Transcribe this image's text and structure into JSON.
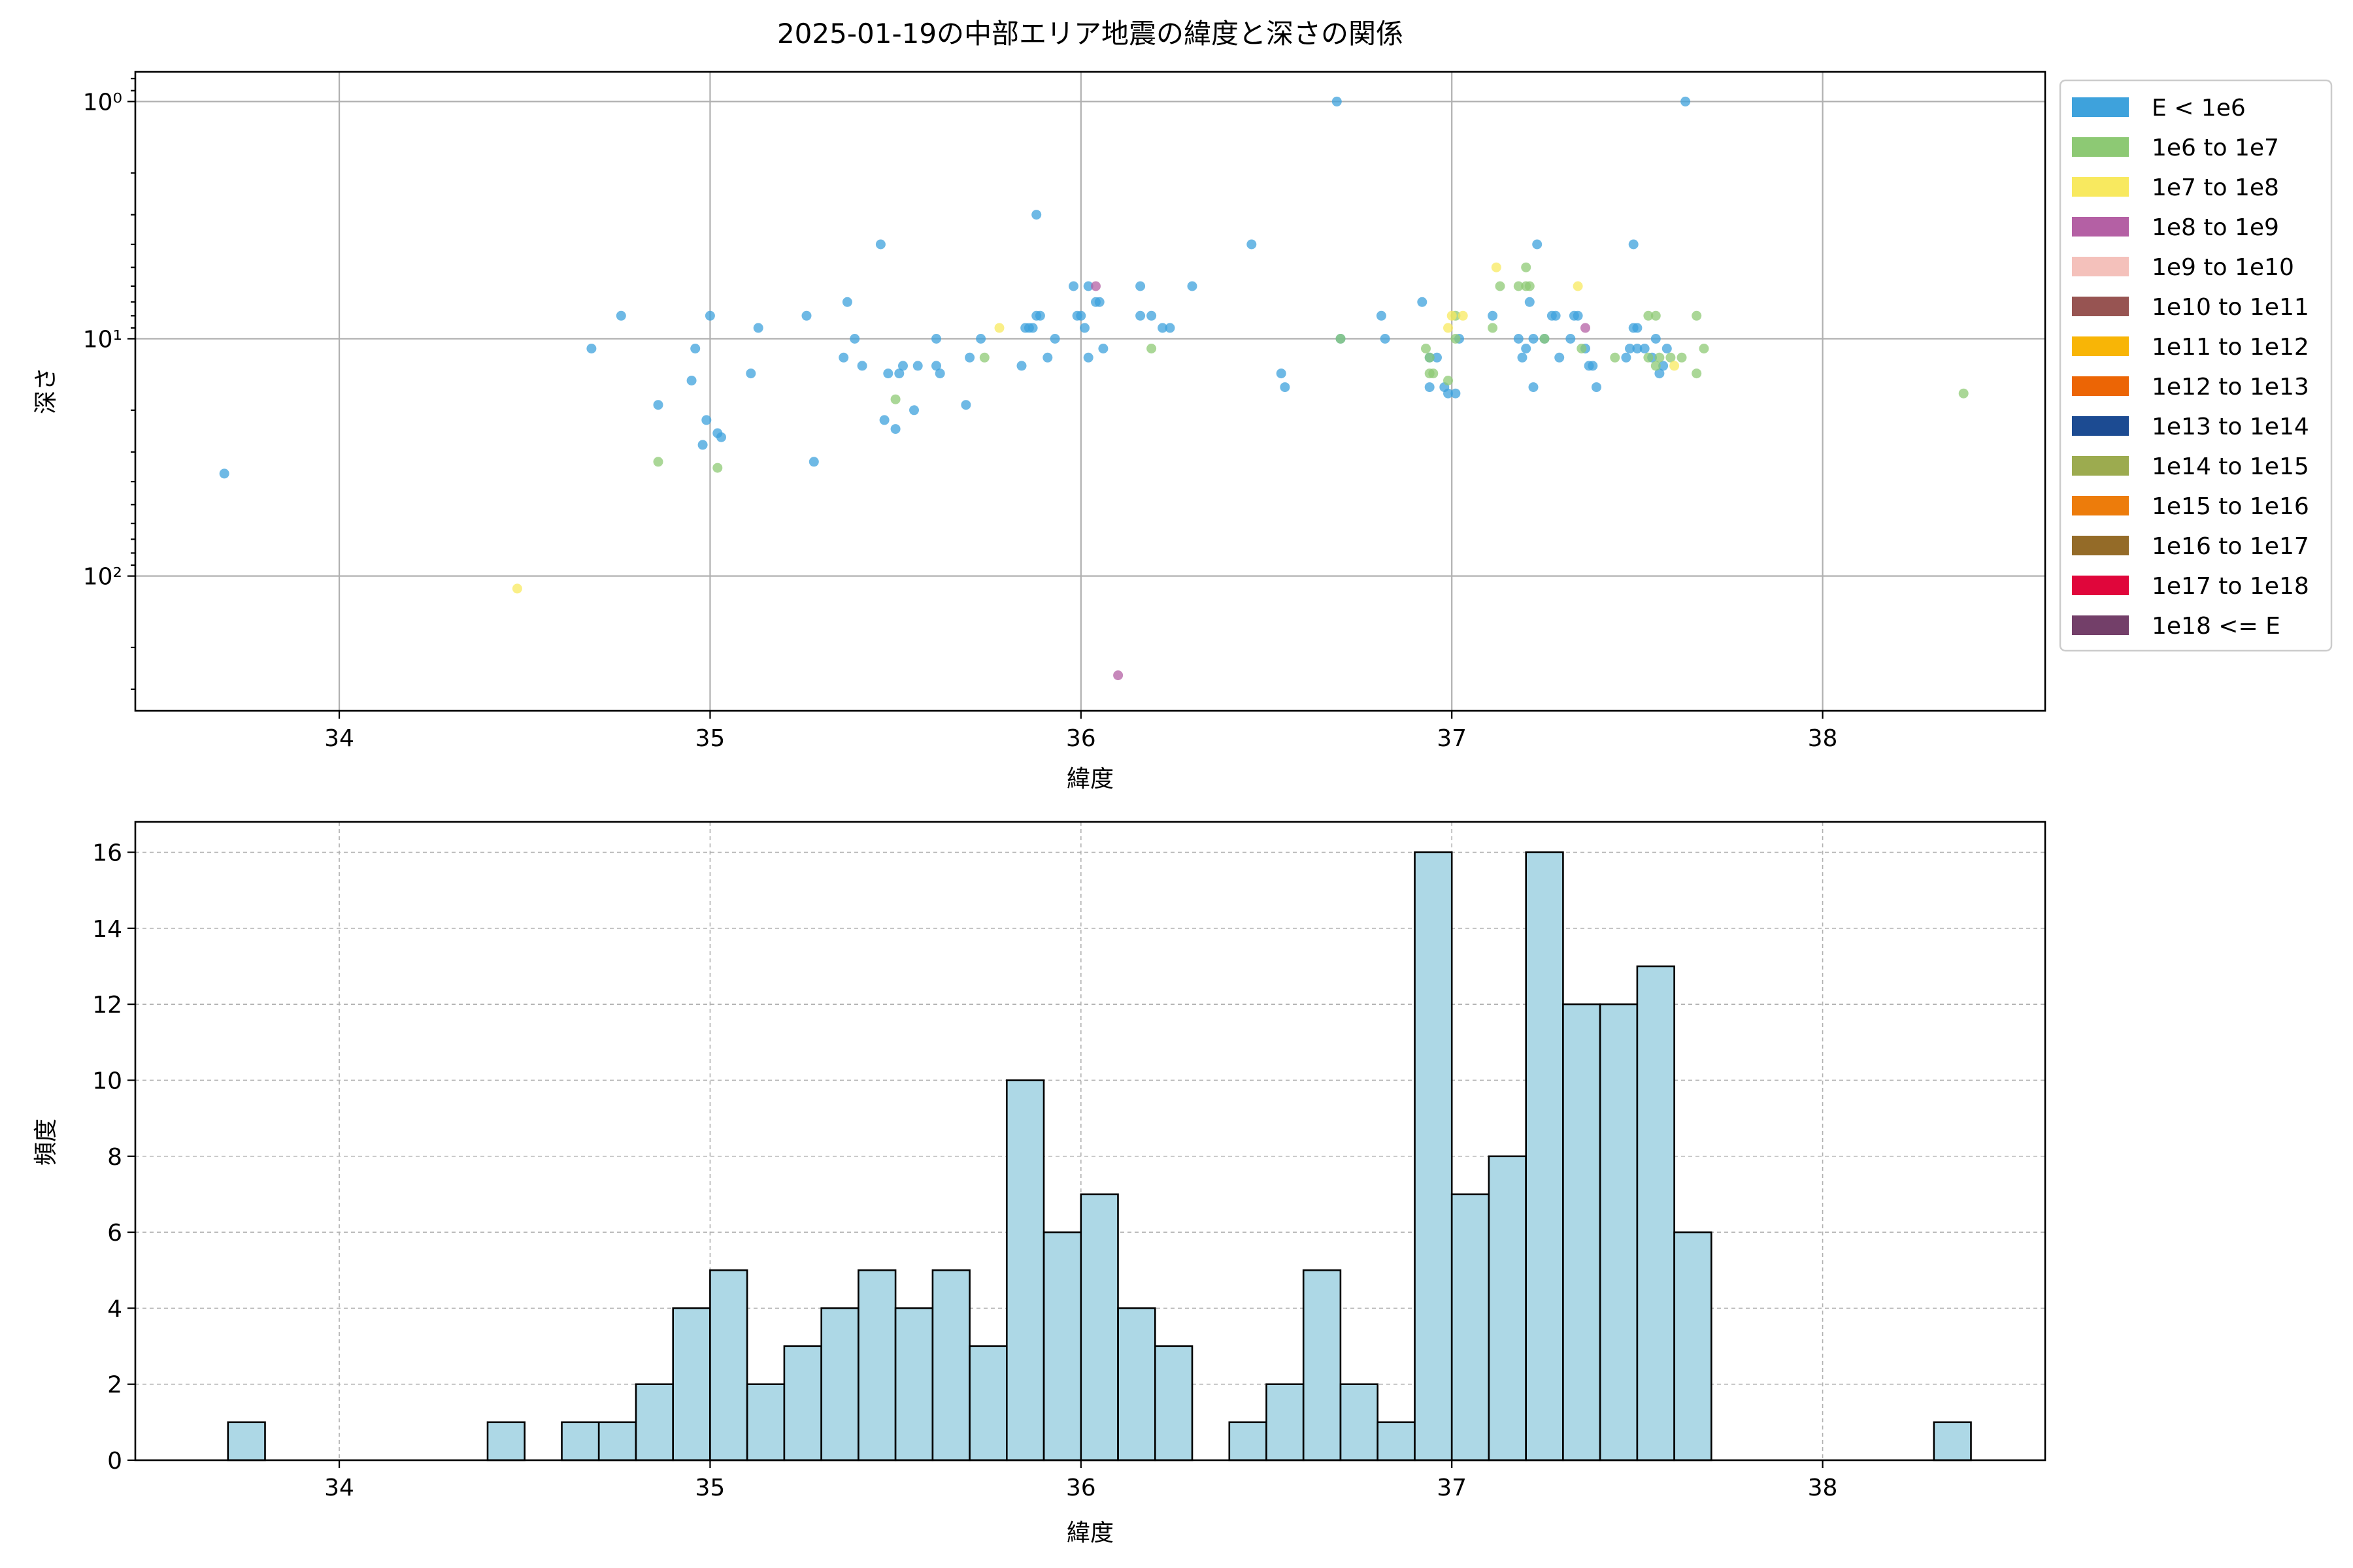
{
  "chart_data": [
    {
      "type": "scatter",
      "title": "2025-01-19の中部エリア地震の緯度と深さの関係",
      "xlabel": "緯度",
      "ylabel": "深さ",
      "xlim": [
        33.45,
        38.6
      ],
      "ylim": [
        370,
        0.75
      ],
      "yscale": "log",
      "y_inverted": true,
      "grid": true,
      "xticks": [
        34,
        35,
        36,
        37,
        38
      ],
      "yticks": [
        {
          "value": 1,
          "label": "10⁰"
        },
        {
          "value": 10,
          "label": "10¹"
        },
        {
          "value": 100,
          "label": "10²"
        }
      ],
      "legend_position": "outside-right",
      "legend": [
        {
          "label": "E < 1e6",
          "color": "#3ea2dc"
        },
        {
          "label": "1e6 to 1e7",
          "color": "#8dc974"
        },
        {
          "label": "1e7 to 1e8",
          "color": "#f8e95f"
        },
        {
          "label": "1e8 to 1e9",
          "color": "#b460a4"
        },
        {
          "label": "1e9 to 1e10",
          "color": "#f4c1bb"
        },
        {
          "label": "1e10 to 1e11",
          "color": "#975452"
        },
        {
          "label": "1e11 to 1e12",
          "color": "#f8b506"
        },
        {
          "label": "1e12 to 1e13",
          "color": "#ec6505"
        },
        {
          "label": "1e13 to 1e14",
          "color": "#1c4b92"
        },
        {
          "label": "1e14 to 1e15",
          "color": "#9cab4f"
        },
        {
          "label": "1e15 to 1e16",
          "color": "#ed7c0b"
        },
        {
          "label": "1e16 to 1e17",
          "color": "#946b28"
        },
        {
          "label": "1e17 to 1e18",
          "color": "#e0063b"
        },
        {
          "label": "1e18 <= E",
          "color": "#733f69"
        }
      ],
      "series": [
        {
          "class": "E < 1e6",
          "color": "#3ea2dc",
          "points": [
            [
              33.69,
              37
            ],
            [
              34.68,
              11
            ],
            [
              34.76,
              8
            ],
            [
              34.86,
              19
            ],
            [
              34.95,
              15
            ],
            [
              34.96,
              11
            ],
            [
              34.98,
              28
            ],
            [
              34.99,
              22
            ],
            [
              35.0,
              8
            ],
            [
              35.02,
              25
            ],
            [
              35.03,
              26
            ],
            [
              35.11,
              14
            ],
            [
              35.13,
              9
            ],
            [
              35.26,
              8
            ],
            [
              35.28,
              33
            ],
            [
              35.36,
              12
            ],
            [
              35.37,
              7
            ],
            [
              35.39,
              10
            ],
            [
              35.41,
              13
            ],
            [
              35.46,
              4
            ],
            [
              35.47,
              22
            ],
            [
              35.48,
              14
            ],
            [
              35.5,
              24
            ],
            [
              35.51,
              14
            ],
            [
              35.52,
              13
            ],
            [
              35.55,
              20
            ],
            [
              35.56,
              13
            ],
            [
              35.61,
              10
            ],
            [
              35.61,
              13
            ],
            [
              35.62,
              14
            ],
            [
              35.69,
              19
            ],
            [
              35.7,
              12
            ],
            [
              35.73,
              10
            ],
            [
              35.84,
              13
            ],
            [
              35.85,
              9
            ],
            [
              35.86,
              9
            ],
            [
              35.87,
              9
            ],
            [
              35.88,
              3
            ],
            [
              35.88,
              8
            ],
            [
              35.89,
              8
            ],
            [
              35.91,
              12
            ],
            [
              35.93,
              10
            ],
            [
              35.98,
              6
            ],
            [
              35.99,
              8
            ],
            [
              36.0,
              8
            ],
            [
              36.01,
              9
            ],
            [
              36.02,
              6
            ],
            [
              36.02,
              12
            ],
            [
              36.04,
              7
            ],
            [
              36.05,
              7
            ],
            [
              36.06,
              11
            ],
            [
              36.16,
              6
            ],
            [
              36.16,
              8
            ],
            [
              36.19,
              8
            ],
            [
              36.22,
              9
            ],
            [
              36.24,
              9
            ],
            [
              36.3,
              6
            ],
            [
              36.46,
              4
            ],
            [
              36.54,
              14
            ],
            [
              36.55,
              16
            ],
            [
              36.69,
              1
            ],
            [
              36.7,
              10
            ],
            [
              36.81,
              8
            ],
            [
              36.82,
              10
            ],
            [
              36.92,
              7
            ],
            [
              36.94,
              12
            ],
            [
              36.94,
              16
            ],
            [
              36.96,
              12
            ],
            [
              36.98,
              16
            ],
            [
              36.99,
              17
            ],
            [
              37.01,
              17
            ],
            [
              37.02,
              10
            ],
            [
              37.11,
              8
            ],
            [
              37.18,
              10
            ],
            [
              37.19,
              12
            ],
            [
              37.2,
              11
            ],
            [
              37.21,
              7
            ],
            [
              37.22,
              10
            ],
            [
              37.22,
              16
            ],
            [
              37.23,
              4
            ],
            [
              37.25,
              10
            ],
            [
              37.27,
              8
            ],
            [
              37.28,
              8
            ],
            [
              37.29,
              12
            ],
            [
              37.32,
              10
            ],
            [
              37.33,
              8
            ],
            [
              37.34,
              8
            ],
            [
              37.36,
              11
            ],
            [
              37.37,
              13
            ],
            [
              37.38,
              13
            ],
            [
              37.39,
              16
            ],
            [
              37.47,
              12
            ],
            [
              37.48,
              11
            ],
            [
              37.49,
              4
            ],
            [
              37.49,
              9
            ],
            [
              37.5,
              9
            ],
            [
              37.5,
              11
            ],
            [
              37.52,
              11
            ],
            [
              37.54,
              12
            ],
            [
              37.55,
              10
            ],
            [
              37.56,
              14
            ],
            [
              37.57,
              13
            ],
            [
              37.58,
              11
            ],
            [
              37.63,
              1
            ]
          ]
        },
        {
          "class": "1e6 to 1e7",
          "color": "#8dc974",
          "points": [
            [
              34.86,
              33
            ],
            [
              35.02,
              35
            ],
            [
              35.5,
              18
            ],
            [
              35.74,
              12
            ],
            [
              36.19,
              11
            ],
            [
              36.7,
              10
            ],
            [
              36.93,
              11
            ],
            [
              36.94,
              12
            ],
            [
              36.94,
              14
            ],
            [
              36.95,
              14
            ],
            [
              36.99,
              15
            ],
            [
              37.01,
              8
            ],
            [
              37.01,
              10
            ],
            [
              37.11,
              9
            ],
            [
              37.13,
              6
            ],
            [
              37.18,
              6
            ],
            [
              37.2,
              5
            ],
            [
              37.2,
              6
            ],
            [
              37.21,
              6
            ],
            [
              37.25,
              10
            ],
            [
              37.35,
              11
            ],
            [
              37.44,
              12
            ],
            [
              37.53,
              12
            ],
            [
              37.53,
              8
            ],
            [
              37.55,
              8
            ],
            [
              37.55,
              13
            ],
            [
              37.56,
              12
            ],
            [
              37.59,
              12
            ],
            [
              37.62,
              12
            ],
            [
              37.66,
              14
            ],
            [
              37.66,
              8
            ],
            [
              37.68,
              11
            ],
            [
              38.38,
              17
            ]
          ]
        },
        {
          "class": "1e7 to 1e8",
          "color": "#f8e95f",
          "points": [
            [
              34.48,
              113
            ],
            [
              35.78,
              9
            ],
            [
              36.99,
              9
            ],
            [
              37.0,
              8
            ],
            [
              37.03,
              8
            ],
            [
              37.12,
              5
            ],
            [
              37.34,
              6
            ],
            [
              37.6,
              13
            ]
          ]
        },
        {
          "class": "1e8 to 1e9",
          "color": "#b460a4",
          "points": [
            [
              36.04,
              6
            ],
            [
              36.1,
              262
            ],
            [
              37.36,
              9
            ]
          ]
        }
      ]
    },
    {
      "type": "bar",
      "xlabel": "緯度",
      "ylabel": "頻度",
      "xlim": [
        33.45,
        38.6
      ],
      "ylim": [
        0,
        16.8
      ],
      "grid": true,
      "xticks": [
        34,
        35,
        36,
        37,
        38
      ],
      "yticks": [
        0,
        2,
        4,
        6,
        8,
        10,
        12,
        14,
        16
      ],
      "bar_color": "#add8e6",
      "edge_color": "#000000",
      "bin_edges": [
        33.7,
        33.8,
        33.9,
        34.0,
        34.1,
        34.2,
        34.3,
        34.4,
        34.5,
        34.6,
        34.7,
        34.8,
        34.9,
        35.0,
        35.1,
        35.2,
        35.3,
        35.4,
        35.5,
        35.6,
        35.7,
        35.8,
        35.9,
        36.0,
        36.1,
        36.2,
        36.3,
        36.4,
        36.5,
        36.6,
        36.7,
        36.8,
        36.9,
        37.0,
        37.1,
        37.2,
        37.3,
        37.4,
        37.5,
        37.6,
        37.7,
        37.8,
        37.9,
        38.0,
        38.1,
        38.2,
        38.3,
        38.4
      ],
      "counts": [
        1,
        0,
        0,
        0,
        0,
        0,
        0,
        1,
        0,
        1,
        1,
        2,
        4,
        5,
        2,
        3,
        4,
        5,
        4,
        5,
        3,
        10,
        6,
        7,
        4,
        3,
        0,
        1,
        2,
        5,
        2,
        1,
        16,
        7,
        8,
        16,
        12,
        12,
        13,
        6,
        0,
        0,
        0,
        0,
        0,
        0,
        1
      ]
    }
  ]
}
